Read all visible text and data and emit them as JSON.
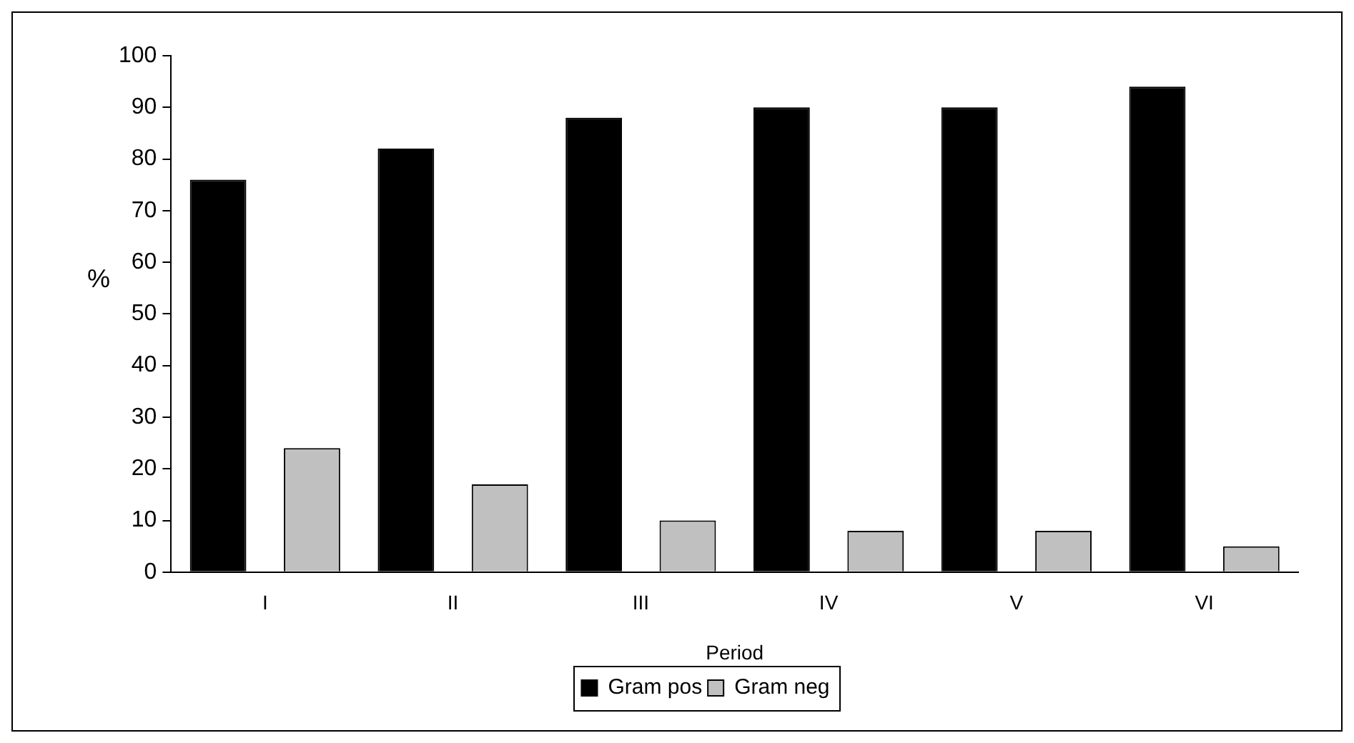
{
  "chart_data": {
    "type": "bar",
    "xlabel": "Period",
    "ylabel": "%",
    "categories": [
      "I",
      "II",
      "III",
      "IV",
      "V",
      "VI"
    ],
    "series": [
      {
        "name": "Gram pos",
        "color": "#000000",
        "values": [
          76,
          82,
          88,
          90,
          90,
          94
        ]
      },
      {
        "name": "Gram neg",
        "color": "#c0c0c0",
        "values": [
          24,
          17,
          10,
          8,
          8,
          5
        ]
      }
    ],
    "ylim": [
      0,
      100
    ],
    "yticks": [
      0,
      10,
      20,
      30,
      40,
      50,
      60,
      70,
      80,
      90,
      100
    ],
    "grid": false,
    "legend": "bottom"
  }
}
